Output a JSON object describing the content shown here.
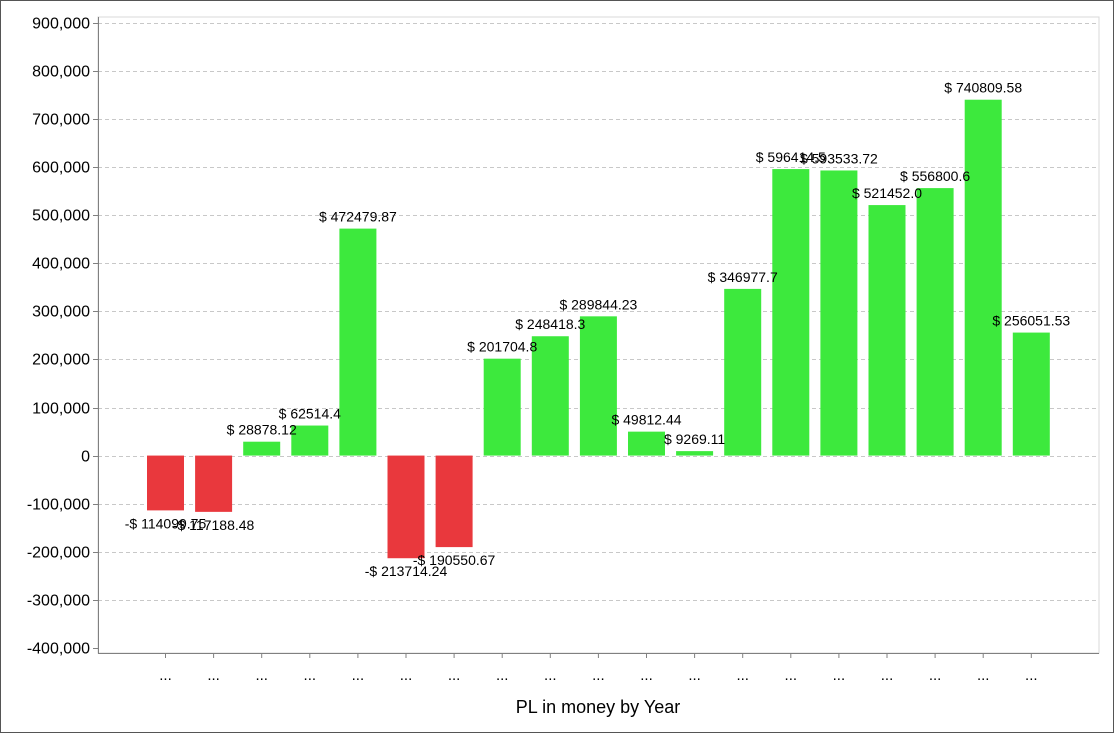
{
  "chart_data": {
    "type": "bar",
    "title": "",
    "xlabel": "PL in money by Year",
    "ylabel": "",
    "ylim": [
      -400000,
      900000
    ],
    "yticks": [
      -400000,
      -300000,
      -200000,
      -100000,
      0,
      100000,
      200000,
      300000,
      400000,
      500000,
      600000,
      700000,
      800000,
      900000
    ],
    "ytick_labels": [
      "-400,000",
      "-300,000",
      "-200,000",
      "-100,000",
      "0",
      "100,000",
      "200,000",
      "300,000",
      "400,000",
      "500,000",
      "600,000",
      "700,000",
      "800,000",
      "900,000"
    ],
    "grid": true,
    "legend": "none",
    "categories": [
      "...",
      "...",
      "...",
      "...",
      "...",
      "...",
      "...",
      "...",
      "...",
      "...",
      "...",
      "...",
      "...",
      "...",
      "...",
      "...",
      "...",
      "...",
      "..."
    ],
    "values": [
      -114099.75,
      -117188.48,
      28878.12,
      62514.4,
      472479.87,
      -213714.24,
      -190550.67,
      201704.8,
      248418.3,
      289844.23,
      49812.44,
      9269.11,
      346977.7,
      596414.5,
      593533.72,
      521452.0,
      556800.6,
      740809.58,
      256051.53
    ],
    "data_labels": [
      "-$ 114099.75",
      "-$ 117188.48",
      "$ 28878.12",
      "$ 62514.4",
      "$ 472479.87",
      "-$ 213714.24",
      "-$ 190550.67",
      "$ 201704.8",
      "$ 248418.3",
      "$ 289844.23",
      "$ 49812.44",
      "$ 9269.11",
      "$ 346977.7",
      "$ 596414.5",
      "$ 593533.72",
      "$ 521452.0",
      "$ 556800.6",
      "$ 740809.58",
      "$ 256051.53"
    ],
    "colors": {
      "positive": "#3de93d",
      "negative": "#e9383d",
      "grid": "#c8c8c8",
      "axis": "#808080"
    }
  }
}
